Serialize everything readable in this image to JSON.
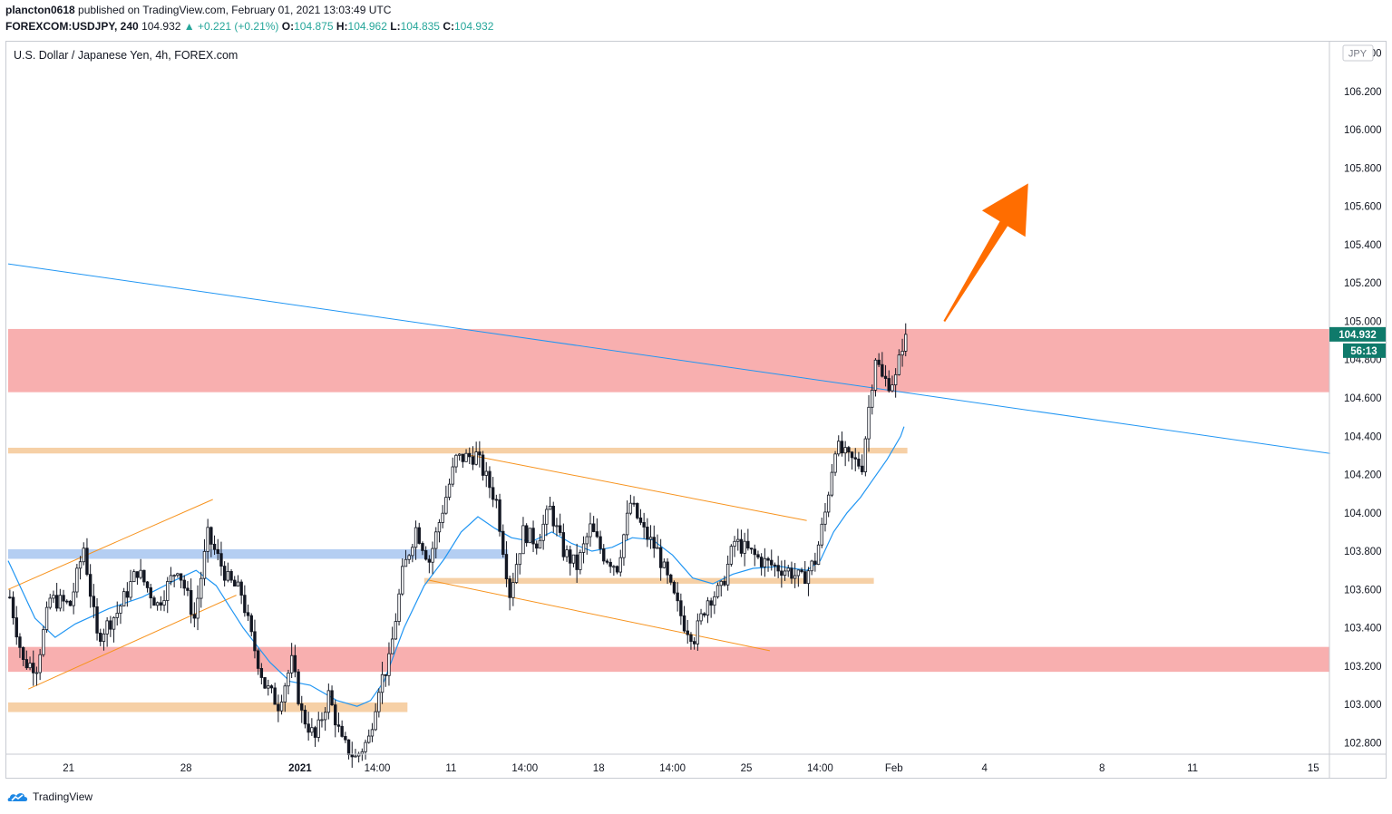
{
  "header": {
    "author": "plancton0618",
    "published": "published on TradingView.com, February 01, 2021 13:03:49 UTC",
    "symbol": "FOREXCOM:USDJPY, 240",
    "last": "104.932",
    "change": "+0.221 (+0.21%)",
    "o_label": "O:",
    "o": "104.875",
    "h_label": "H:",
    "h": "104.962",
    "l_label": "L:",
    "l": "104.835",
    "c_label": "C:",
    "c": "104.932"
  },
  "chart_title": "U.S. Dollar / Japanese Yen, 4h, FOREX.com",
  "currency": "JPY",
  "price_tag": "104.932",
  "countdown": "56:13",
  "footer": {
    "brand": "TradingView"
  },
  "colors": {
    "up": "#26a69a",
    "down": "#ef5350",
    "candle": "#131722",
    "resistance_zone": "#f7a1a1",
    "support_zone": "#f5c896",
    "blue_zone": "#a7c5f0",
    "trendline": "#2196f3",
    "channel": "#f7931e",
    "arrow": "#ff6d00",
    "tag": "#0f7a6b"
  },
  "chart_data": {
    "type": "candlestick",
    "title": "U.S. Dollar / Japanese Yen, 4h, FOREX.com",
    "yticks": [
      106.4,
      106.2,
      106.0,
      105.8,
      105.6,
      105.4,
      105.2,
      105.0,
      104.8,
      104.6,
      104.4,
      104.2,
      104.0,
      103.8,
      103.6,
      103.4,
      103.2,
      103.0,
      102.8
    ],
    "ylim": [
      102.74,
      106.46
    ],
    "xticks": [
      {
        "label": "21",
        "bar": 18
      },
      {
        "label": "28",
        "bar": 53
      },
      {
        "label": "2021",
        "bar": 87
      },
      {
        "label": "14:00",
        "bar": 110
      },
      {
        "label": "11",
        "bar": 132
      },
      {
        "label": "14:00",
        "bar": 154
      },
      {
        "label": "18",
        "bar": 176
      },
      {
        "label": "14:00",
        "bar": 198
      },
      {
        "label": "25",
        "bar": 220
      },
      {
        "label": "14:00",
        "bar": 242
      },
      {
        "label": "Feb",
        "bar": 264
      },
      {
        "label": "4",
        "bar": 291
      },
      {
        "label": "8",
        "bar": 326
      },
      {
        "label": "11",
        "bar": 353
      },
      {
        "label": "15",
        "bar": 389
      }
    ],
    "price_path": [
      [
        0,
        103.56
      ],
      [
        4,
        103.22
      ],
      [
        8,
        103.2
      ],
      [
        12,
        103.55
      ],
      [
        18,
        103.52
      ],
      [
        22,
        103.82
      ],
      [
        26,
        103.35
      ],
      [
        32,
        103.48
      ],
      [
        38,
        103.7
      ],
      [
        44,
        103.52
      ],
      [
        50,
        103.72
      ],
      [
        55,
        103.45
      ],
      [
        59,
        103.88
      ],
      [
        65,
        103.65
      ],
      [
        69,
        103.58
      ],
      [
        72,
        103.35
      ],
      [
        76,
        103.1
      ],
      [
        80,
        103.0
      ],
      [
        84,
        103.22
      ],
      [
        87,
        102.95
      ],
      [
        91,
        102.82
      ],
      [
        95,
        103.05
      ],
      [
        99,
        102.8
      ],
      [
        103,
        102.72
      ],
      [
        107,
        102.82
      ],
      [
        110,
        103.1
      ],
      [
        113,
        103.22
      ],
      [
        117,
        103.68
      ],
      [
        121,
        103.92
      ],
      [
        125,
        103.75
      ],
      [
        129,
        104.02
      ],
      [
        133,
        104.28
      ],
      [
        139,
        104.3
      ],
      [
        145,
        104.06
      ],
      [
        149,
        103.58
      ],
      [
        153,
        103.9
      ],
      [
        157,
        103.85
      ],
      [
        161,
        104.02
      ],
      [
        165,
        103.8
      ],
      [
        169,
        103.72
      ],
      [
        173,
        103.92
      ],
      [
        177,
        103.78
      ],
      [
        181,
        103.72
      ],
      [
        185,
        104.05
      ],
      [
        189,
        103.9
      ],
      [
        193,
        103.8
      ],
      [
        197,
        103.6
      ],
      [
        201,
        103.42
      ],
      [
        204,
        103.35
      ],
      [
        208,
        103.55
      ],
      [
        212,
        103.6
      ],
      [
        216,
        103.85
      ],
      [
        220,
        103.8
      ],
      [
        224,
        103.75
      ],
      [
        228,
        103.72
      ],
      [
        232,
        103.7
      ],
      [
        236,
        103.65
      ],
      [
        240,
        103.75
      ],
      [
        243,
        104.0
      ],
      [
        246,
        104.35
      ],
      [
        250,
        104.28
      ],
      [
        254,
        104.25
      ],
      [
        256,
        104.55
      ],
      [
        258,
        104.82
      ],
      [
        260,
        104.7
      ],
      [
        262,
        104.68
      ],
      [
        264,
        104.7
      ],
      [
        266,
        104.88
      ],
      [
        267,
        104.93
      ]
    ],
    "ma_points": [
      [
        0,
        103.75
      ],
      [
        8,
        103.45
      ],
      [
        14,
        103.35
      ],
      [
        20,
        103.42
      ],
      [
        30,
        103.5
      ],
      [
        40,
        103.56
      ],
      [
        50,
        103.65
      ],
      [
        56,
        103.7
      ],
      [
        62,
        103.62
      ],
      [
        70,
        103.4
      ],
      [
        78,
        103.22
      ],
      [
        84,
        103.12
      ],
      [
        90,
        103.1
      ],
      [
        98,
        103.02
      ],
      [
        104,
        102.99
      ],
      [
        108,
        103.02
      ],
      [
        112,
        103.12
      ],
      [
        118,
        103.4
      ],
      [
        124,
        103.62
      ],
      [
        130,
        103.76
      ],
      [
        135,
        103.9
      ],
      [
        140,
        103.98
      ],
      [
        145,
        103.92
      ],
      [
        150,
        103.87
      ],
      [
        156,
        103.85
      ],
      [
        162,
        103.9
      ],
      [
        168,
        103.84
      ],
      [
        174,
        103.8
      ],
      [
        180,
        103.82
      ],
      [
        186,
        103.87
      ],
      [
        192,
        103.86
      ],
      [
        198,
        103.78
      ],
      [
        204,
        103.66
      ],
      [
        210,
        103.63
      ],
      [
        216,
        103.68
      ],
      [
        222,
        103.71
      ],
      [
        230,
        103.72
      ],
      [
        238,
        103.7
      ],
      [
        242,
        103.75
      ],
      [
        246,
        103.9
      ],
      [
        250,
        104.0
      ],
      [
        254,
        104.08
      ],
      [
        258,
        104.18
      ],
      [
        262,
        104.28
      ],
      [
        266,
        104.4
      ],
      [
        267,
        104.45
      ]
    ],
    "zones": [
      {
        "kind": "resistance",
        "from_bar": 0,
        "to_bar": 398,
        "y1": 104.63,
        "y2": 104.96
      },
      {
        "kind": "resistance",
        "from_bar": 0,
        "to_bar": 398,
        "y1": 103.17,
        "y2": 103.3
      },
      {
        "kind": "support",
        "from_bar": 0,
        "to_bar": 268,
        "y1": 104.31,
        "y2": 104.34
      },
      {
        "kind": "support",
        "from_bar": 124,
        "to_bar": 258,
        "y1": 103.63,
        "y2": 103.66
      },
      {
        "kind": "support",
        "from_bar": 0,
        "to_bar": 119,
        "y1": 102.96,
        "y2": 103.01
      },
      {
        "kind": "blue",
        "from_bar": 0,
        "to_bar": 149,
        "y1": 103.76,
        "y2": 103.81
      }
    ],
    "trendlines": [
      {
        "kind": "trendline",
        "from": [
          0,
          105.3
        ],
        "to": [
          394,
          104.31
        ]
      },
      {
        "kind": "channel",
        "from": [
          0,
          103.6
        ],
        "to": [
          61,
          104.07
        ]
      },
      {
        "kind": "channel",
        "from": [
          6,
          103.08
        ],
        "to": [
          68,
          103.57
        ]
      },
      {
        "kind": "channel",
        "from": [
          138,
          104.3
        ],
        "to": [
          238,
          103.96
        ]
      },
      {
        "kind": "channel",
        "from": [
          125,
          103.65
        ],
        "to": [
          227,
          103.28
        ]
      }
    ],
    "arrow": {
      "from": [
        279,
        105.0
      ],
      "to": [
        304,
        105.72
      ]
    }
  }
}
